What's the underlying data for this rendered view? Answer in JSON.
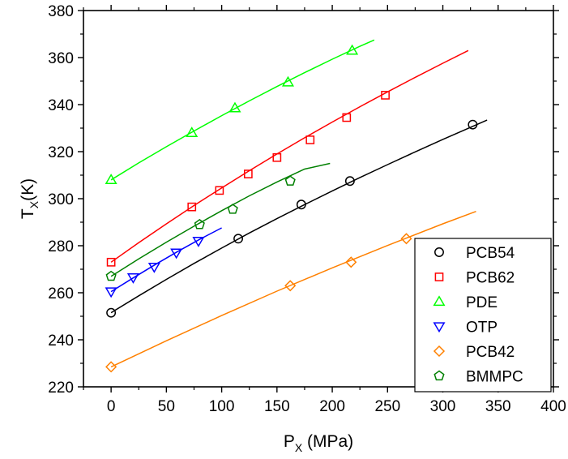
{
  "chart_data": {
    "type": "scatter",
    "xlabel": {
      "main": "P",
      "sub": "X",
      "rest": " (MPa)"
    },
    "ylabel": {
      "main": "T",
      "sub": "X",
      "rest": "(K)"
    },
    "xlim": [
      -25,
      400
    ],
    "ylim": [
      220,
      380
    ],
    "xticks": [
      0,
      50,
      100,
      150,
      200,
      250,
      300,
      350,
      400
    ],
    "yticks": [
      220,
      240,
      260,
      280,
      300,
      320,
      340,
      360,
      380
    ],
    "grid": false,
    "legend_position": "bottom-right",
    "series": [
      {
        "name": "PCB54",
        "color": "#000000",
        "marker": "circle",
        "points": [
          [
            0,
            251.5
          ],
          [
            115,
            283
          ],
          [
            172,
            297.5
          ],
          [
            216,
            307.5
          ],
          [
            327,
            331.5
          ]
        ],
        "fit": [
          [
            0,
            251.5
          ],
          [
            25,
            258.7
          ],
          [
            50,
            265.7
          ],
          [
            75,
            272.5
          ],
          [
            100,
            279.0
          ],
          [
            125,
            285.4
          ],
          [
            150,
            291.5
          ],
          [
            175,
            297.5
          ],
          [
            200,
            303.3
          ],
          [
            225,
            309.0
          ],
          [
            250,
            314.5
          ],
          [
            275,
            319.9
          ],
          [
            300,
            325.2
          ],
          [
            325,
            330.3
          ],
          [
            340,
            333.4
          ]
        ]
      },
      {
        "name": "PCB62",
        "color": "#ff0000",
        "marker": "square",
        "points": [
          [
            0,
            273
          ],
          [
            73,
            296.5
          ],
          [
            98,
            303.5
          ],
          [
            124,
            310.5
          ],
          [
            150,
            317.5
          ],
          [
            180,
            325
          ],
          [
            213,
            334.5
          ],
          [
            248,
            344
          ]
        ],
        "fit": [
          [
            0,
            273.0
          ],
          [
            25,
            281.3
          ],
          [
            50,
            289.3
          ],
          [
            75,
            297.1
          ],
          [
            100,
            304.6
          ],
          [
            125,
            311.9
          ],
          [
            150,
            319.0
          ],
          [
            175,
            325.9
          ],
          [
            200,
            332.6
          ],
          [
            225,
            339.1
          ],
          [
            250,
            345.4
          ],
          [
            275,
            351.6
          ],
          [
            300,
            357.6
          ],
          [
            323,
            363.0
          ]
        ]
      },
      {
        "name": "PDE",
        "color": "#00ff00",
        "marker": "triangle-up",
        "points": [
          [
            0,
            308
          ],
          [
            73,
            328
          ],
          [
            112,
            338.5
          ],
          [
            160,
            349.5
          ],
          [
            218,
            363
          ]
        ],
        "fit": [
          [
            0,
            308.0
          ],
          [
            25,
            315.2
          ],
          [
            50,
            322.1
          ],
          [
            75,
            328.8
          ],
          [
            100,
            335.3
          ],
          [
            125,
            341.6
          ],
          [
            150,
            347.7
          ],
          [
            175,
            353.6
          ],
          [
            200,
            359.3
          ],
          [
            225,
            364.8
          ],
          [
            238,
            367.5
          ]
        ]
      },
      {
        "name": "OTP",
        "color": "#0000ff",
        "marker": "triangle-down",
        "points": [
          [
            0,
            260.5
          ],
          [
            20,
            266.5
          ],
          [
            39,
            271
          ],
          [
            59,
            277
          ],
          [
            79,
            282
          ]
        ],
        "fit": [
          [
            0,
            260.5
          ],
          [
            20,
            266.3
          ],
          [
            40,
            272.0
          ],
          [
            60,
            277.5
          ],
          [
            80,
            282.7
          ],
          [
            100,
            287.6
          ]
        ]
      },
      {
        "name": "PCB42",
        "color": "#ff8000",
        "marker": "diamond",
        "points": [
          [
            0,
            228.5
          ],
          [
            162,
            263
          ],
          [
            217,
            273
          ],
          [
            267,
            283
          ]
        ],
        "fit": [
          [
            0,
            228.5
          ],
          [
            50,
            239.6
          ],
          [
            100,
            250.3
          ],
          [
            150,
            260.7
          ],
          [
            200,
            270.6
          ],
          [
            250,
            280.1
          ],
          [
            300,
            289.3
          ],
          [
            330,
            294.6
          ]
        ]
      },
      {
        "name": "BMMPC",
        "color": "#008000",
        "marker": "pentagon",
        "points": [
          [
            0,
            267
          ],
          [
            80,
            289
          ],
          [
            110,
            295.5
          ],
          [
            162,
            307.5
          ]
        ],
        "fit": [
          [
            0,
            267.0
          ],
          [
            25,
            274.4
          ],
          [
            50,
            281.5
          ],
          [
            75,
            288.3
          ],
          [
            100,
            294.9
          ],
          [
            125,
            301.2
          ],
          [
            150,
            307.1
          ],
          [
            175,
            312.6
          ],
          [
            198,
            315.0
          ]
        ]
      }
    ]
  }
}
